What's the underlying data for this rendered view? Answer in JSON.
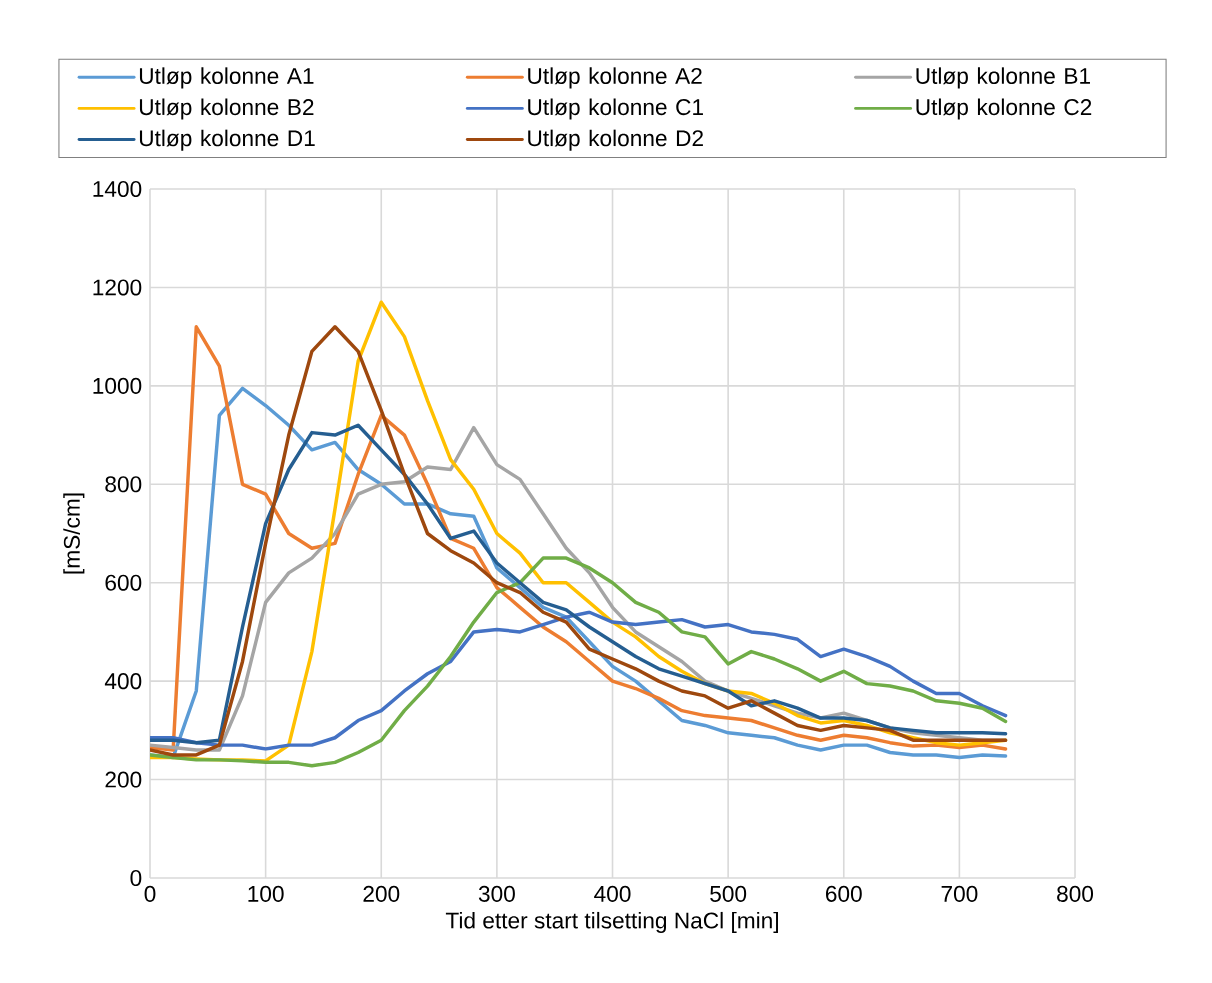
{
  "chart_data": {
    "type": "line",
    "xlabel": "Tid etter start tilsetting NaCl [min]",
    "ylabel": "[mS/cm]",
    "x": [
      0,
      20,
      40,
      60,
      80,
      100,
      120,
      140,
      160,
      180,
      200,
      220,
      240,
      260,
      280,
      300,
      320,
      340,
      360,
      380,
      400,
      420,
      440,
      460,
      480,
      500,
      520,
      540,
      560,
      580,
      600,
      620,
      640,
      660,
      680,
      700,
      720,
      740
    ],
    "series": [
      {
        "name": "Utløp kolonne A1",
        "color": "#5b9bd5",
        "values": [
          250,
          245,
          380,
          940,
          995,
          960,
          920,
          870,
          885,
          830,
          800,
          760,
          760,
          740,
          735,
          630,
          590,
          550,
          530,
          480,
          430,
          400,
          360,
          320,
          310,
          295,
          290,
          285,
          270,
          260,
          270,
          270,
          255,
          250,
          250,
          245,
          250,
          248
        ]
      },
      {
        "name": "Utløp kolonne A2",
        "color": "#ed7d31",
        "values": [
          265,
          260,
          1120,
          1040,
          800,
          780,
          700,
          670,
          680,
          820,
          940,
          900,
          800,
          690,
          670,
          590,
          550,
          510,
          480,
          440,
          400,
          385,
          365,
          340,
          330,
          325,
          320,
          305,
          290,
          280,
          290,
          285,
          275,
          268,
          270,
          265,
          270,
          262
        ]
      },
      {
        "name": "Utløp kolonne B1",
        "color": "#a5a5a5",
        "values": [
          270,
          265,
          260,
          260,
          370,
          560,
          620,
          650,
          700,
          780,
          800,
          805,
          835,
          830,
          915,
          840,
          810,
          740,
          670,
          620,
          550,
          500,
          470,
          440,
          400,
          380,
          365,
          350,
          335,
          325,
          335,
          320,
          305,
          295,
          290,
          285,
          280,
          280
        ]
      },
      {
        "name": "Utløp kolonne B2",
        "color": "#ffc000",
        "values": [
          245,
          245,
          242,
          240,
          240,
          238,
          270,
          460,
          750,
          1050,
          1170,
          1100,
          970,
          850,
          790,
          700,
          660,
          600,
          600,
          560,
          520,
          490,
          450,
          420,
          395,
          380,
          375,
          355,
          330,
          315,
          320,
          310,
          295,
          285,
          275,
          270,
          275,
          280
        ]
      },
      {
        "name": "Utløp kolonne C1",
        "color": "#4472c4",
        "values": [
          285,
          285,
          275,
          270,
          270,
          262,
          270,
          270,
          285,
          320,
          340,
          380,
          415,
          440,
          500,
          505,
          500,
          515,
          530,
          540,
          520,
          515,
          520,
          525,
          510,
          515,
          500,
          495,
          485,
          450,
          465,
          450,
          430,
          400,
          375,
          375,
          350,
          330
        ]
      },
      {
        "name": "Utløp kolonne C2",
        "color": "#70ad47",
        "values": [
          250,
          245,
          240,
          240,
          238,
          235,
          235,
          228,
          235,
          255,
          280,
          340,
          390,
          450,
          520,
          580,
          600,
          650,
          650,
          630,
          600,
          560,
          540,
          500,
          490,
          435,
          460,
          445,
          425,
          400,
          420,
          395,
          390,
          380,
          360,
          355,
          345,
          318
        ]
      },
      {
        "name": "Utløp kolonne D1",
        "color": "#255e91",
        "values": [
          280,
          280,
          275,
          280,
          510,
          720,
          830,
          905,
          900,
          920,
          870,
          820,
          760,
          690,
          705,
          640,
          600,
          560,
          545,
          510,
          480,
          450,
          425,
          410,
          395,
          380,
          350,
          360,
          345,
          325,
          325,
          320,
          305,
          300,
          295,
          295,
          295,
          293
        ]
      },
      {
        "name": "Utløp kolonne D2",
        "color": "#9e480e",
        "values": [
          260,
          250,
          250,
          270,
          440,
          680,
          900,
          1070,
          1120,
          1070,
          950,
          820,
          700,
          665,
          640,
          600,
          580,
          540,
          520,
          465,
          445,
          425,
          400,
          380,
          370,
          345,
          360,
          335,
          310,
          300,
          310,
          305,
          300,
          280,
          280,
          280,
          280,
          280
        ]
      }
    ],
    "xlim": [
      0,
      800
    ],
    "xticks": [
      0,
      100,
      200,
      300,
      400,
      500,
      600,
      700,
      800
    ],
    "ylim": [
      0,
      1400
    ],
    "yticks": [
      0,
      200,
      400,
      600,
      800,
      1000,
      1200,
      1400
    ],
    "grid": true,
    "legend": "top",
    "marker": "none",
    "line_style": "solid"
  }
}
